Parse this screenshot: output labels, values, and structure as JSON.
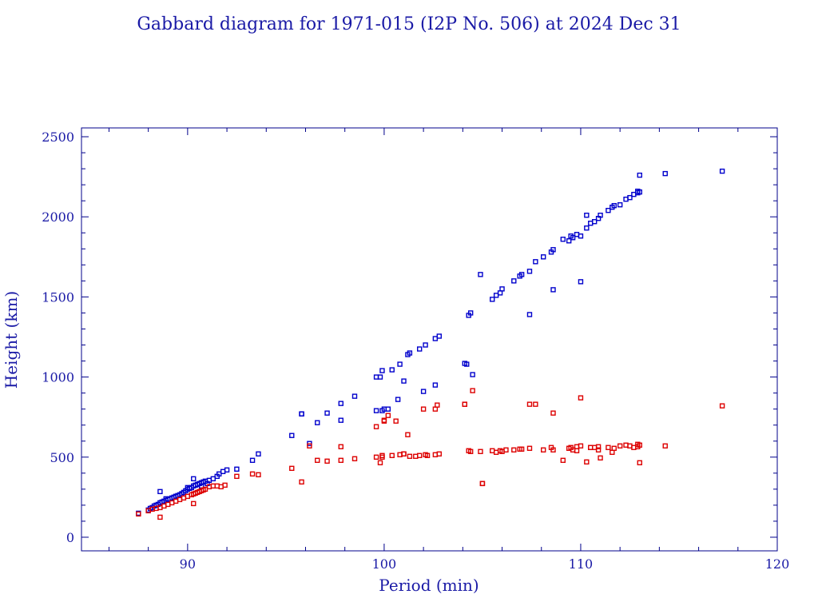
{
  "chart_data": {
    "type": "scatter",
    "title": "Gabbard diagram for 1971-015 (I2P No. 506) at 2024 Dec 31",
    "xlabel": "Period (min)",
    "ylabel": "Height (km)",
    "xlim": [
      84.6,
      120
    ],
    "ylim": [
      -85,
      2555
    ],
    "xticks": [
      90,
      100,
      110,
      120
    ],
    "yticks": [
      0,
      500,
      1000,
      1500,
      2000,
      2500
    ],
    "grid": false,
    "colors": {
      "apogee": "#0000cc",
      "perigee": "#dd0000",
      "axis": "#00008b"
    },
    "series": [
      {
        "key": "apogee",
        "x": [
          87.5,
          88.0,
          88.2,
          88.3,
          88.4,
          88.5,
          88.6,
          88.7,
          88.8,
          88.9,
          89.0,
          89.1,
          89.2,
          89.3,
          89.4,
          89.5,
          89.6,
          89.7,
          89.8,
          89.9,
          90.0,
          90.1,
          90.2,
          90.3,
          90.4,
          90.5,
          90.6,
          90.7,
          90.8,
          90.9,
          91.1,
          91.3,
          91.5,
          91.6,
          91.8,
          92.0,
          92.5,
          93.3,
          93.6,
          95.3,
          95.8,
          96.2,
          96.6,
          97.1,
          97.8,
          98.5,
          99.6,
          99.8,
          99.9,
          100.0,
          100.4,
          100.8,
          101.2,
          101.3,
          101.8,
          102.1,
          102.6,
          102.8,
          104.1,
          104.3,
          104.4,
          104.9,
          105.5,
          105.7,
          105.9,
          106.0,
          106.6,
          106.9,
          107.0,
          107.4,
          107.7,
          108.1,
          108.5,
          108.6,
          109.1,
          109.4,
          109.5,
          109.6,
          109.8,
          110.0,
          110.3,
          110.5,
          110.7,
          110.9,
          111.0,
          111.4,
          111.6,
          111.7,
          112.0,
          112.3,
          112.5,
          112.7,
          112.9,
          113.0,
          113.0,
          114.3,
          117.2,
          88.6,
          90.3,
          95.8,
          97.8,
          99.6,
          99.9,
          100.2,
          100.7,
          101.0,
          102.0,
          102.6,
          104.5,
          104.2,
          107.4,
          108.6,
          110.0,
          110.3,
          112.9,
          88.1,
          88.9,
          89.4,
          90.0,
          90.7,
          91.0
        ],
        "y": [
          150,
          170,
          185,
          195,
          200,
          205,
          215,
          220,
          225,
          230,
          235,
          240,
          245,
          250,
          255,
          260,
          265,
          272,
          280,
          290,
          300,
          305,
          310,
          320,
          325,
          330,
          335,
          340,
          345,
          350,
          355,
          365,
          380,
          395,
          410,
          420,
          425,
          480,
          520,
          635,
          770,
          585,
          715,
          775,
          835,
          880,
          790,
          1000,
          1040,
          800,
          1045,
          1080,
          1140,
          1150,
          1175,
          1200,
          1240,
          1255,
          1085,
          1385,
          1400,
          1640,
          1485,
          1510,
          1525,
          1550,
          1600,
          1630,
          1640,
          1660,
          1720,
          1750,
          1780,
          1795,
          1860,
          1850,
          1880,
          1870,
          1890,
          1880,
          1930,
          1960,
          1970,
          1990,
          2010,
          2040,
          2060,
          2070,
          2075,
          2110,
          2120,
          2140,
          2160,
          2155,
          2260,
          2270,
          2285,
          285,
          365,
          770,
          730,
          1000,
          790,
          800,
          860,
          975,
          910,
          950,
          1015,
          1080,
          1390,
          1545,
          1595,
          2010,
          2150,
          180,
          240,
          255,
          310,
          320,
          335
        ]
      },
      {
        "key": "perigee",
        "x": [
          87.5,
          88.0,
          88.2,
          88.4,
          88.6,
          88.8,
          89.0,
          89.2,
          89.4,
          89.6,
          89.8,
          90.0,
          90.2,
          90.3,
          90.4,
          90.5,
          90.6,
          90.7,
          90.8,
          90.9,
          91.1,
          91.3,
          91.5,
          91.7,
          91.9,
          92.5,
          93.3,
          93.6,
          95.3,
          95.8,
          96.2,
          96.6,
          97.1,
          97.8,
          98.5,
          99.6,
          99.8,
          99.9,
          100.0,
          100.4,
          100.8,
          101.0,
          101.2,
          101.3,
          101.8,
          102.1,
          102.6,
          102.8,
          104.1,
          104.3,
          104.4,
          104.9,
          105.0,
          105.5,
          105.7,
          105.9,
          106.0,
          106.6,
          106.9,
          107.0,
          107.4,
          107.7,
          108.1,
          108.5,
          108.6,
          109.1,
          109.4,
          109.5,
          109.6,
          109.8,
          110.0,
          110.3,
          110.5,
          110.7,
          110.9,
          111.0,
          111.4,
          111.6,
          111.7,
          112.0,
          112.3,
          112.5,
          112.7,
          112.9,
          113.0,
          113.0,
          114.3,
          117.2,
          88.6,
          90.3,
          99.6,
          100.0,
          100.2,
          100.6,
          101.0,
          102.0,
          102.6,
          102.7,
          104.1,
          104.5,
          105.0,
          107.4,
          108.6,
          110.0,
          110.5,
          110.9,
          112.9,
          97.8,
          99.9,
          101.6,
          102.2,
          106.2,
          109.8
        ],
        "y": [
          145,
          165,
          175,
          180,
          185,
          195,
          205,
          215,
          225,
          235,
          245,
          255,
          265,
          270,
          275,
          280,
          285,
          290,
          295,
          300,
          315,
          320,
          320,
          315,
          325,
          380,
          395,
          390,
          430,
          345,
          570,
          480,
          475,
          565,
          490,
          690,
          465,
          510,
          730,
          510,
          515,
          520,
          640,
          505,
          510,
          515,
          515,
          520,
          830,
          540,
          535,
          535,
          335,
          540,
          530,
          540,
          535,
          545,
          550,
          550,
          555,
          830,
          545,
          560,
          545,
          480,
          555,
          560,
          545,
          540,
          570,
          470,
          560,
          560,
          565,
          495,
          560,
          530,
          555,
          570,
          575,
          570,
          560,
          565,
          465,
          575,
          570,
          820,
          125,
          210,
          500,
          725,
          760,
          725,
          520,
          800,
          800,
          825,
          830,
          915,
          335,
          830,
          775,
          870,
          560,
          545,
          580,
          480,
          500,
          505,
          510,
          545,
          565
        ]
      }
    ]
  }
}
